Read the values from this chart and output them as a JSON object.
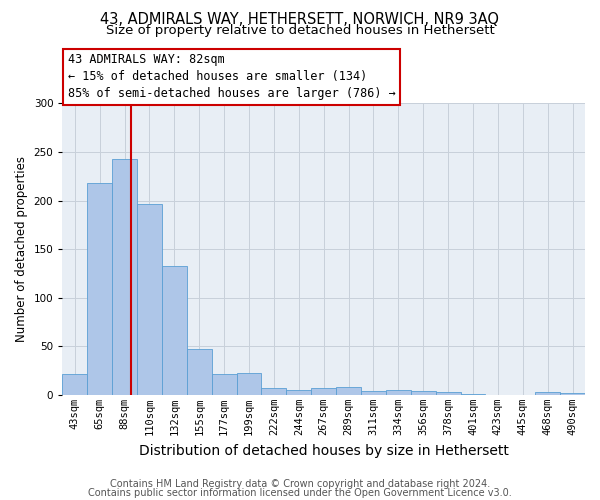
{
  "title1": "43, ADMIRALS WAY, HETHERSETT, NORWICH, NR9 3AQ",
  "title2": "Size of property relative to detached houses in Hethersett",
  "xlabel": "Distribution of detached houses by size in Hethersett",
  "ylabel": "Number of detached properties",
  "categories": [
    "43sqm",
    "65sqm",
    "88sqm",
    "110sqm",
    "132sqm",
    "155sqm",
    "177sqm",
    "199sqm",
    "222sqm",
    "244sqm",
    "267sqm",
    "289sqm",
    "311sqm",
    "334sqm",
    "356sqm",
    "378sqm",
    "401sqm",
    "423sqm",
    "445sqm",
    "468sqm",
    "490sqm"
  ],
  "values": [
    22,
    218,
    243,
    196,
    133,
    47,
    22,
    23,
    7,
    5,
    7,
    8,
    4,
    5,
    4,
    3,
    1,
    0,
    0,
    3,
    2
  ],
  "bar_color": "#aec6e8",
  "bar_edge_color": "#5a9fd4",
  "marker_color": "#cc0000",
  "annotation_line1": "43 ADMIRALS WAY: 82sqm",
  "annotation_line2": "← 15% of detached houses are smaller (134)",
  "annotation_line3": "85% of semi-detached houses are larger (786) →",
  "annotation_box_color": "#ffffff",
  "annotation_box_edge": "#cc0000",
  "footer1": "Contains HM Land Registry data © Crown copyright and database right 2024.",
  "footer2": "Contains public sector information licensed under the Open Government Licence v3.0.",
  "bg_color": "#ffffff",
  "plot_bg_color": "#e8eef5",
  "grid_color": "#c8d0da",
  "ylim": [
    0,
    300
  ],
  "title1_fontsize": 10.5,
  "title2_fontsize": 9.5,
  "xlabel_fontsize": 10,
  "ylabel_fontsize": 8.5,
  "tick_fontsize": 7.5,
  "annot_fontsize": 8.5,
  "footer_fontsize": 7
}
